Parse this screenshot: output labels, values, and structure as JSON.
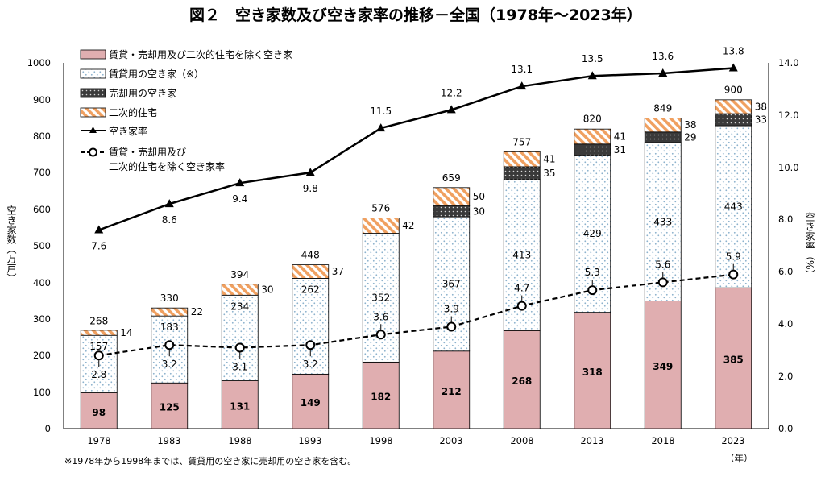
{
  "chart_data": {
    "type": "bar",
    "title": "図２　空き家数及び空き家率の推移－全国（1978年～2023年）",
    "categories": [
      "1978",
      "1983",
      "1988",
      "1993",
      "1998",
      "2003",
      "2008",
      "2013",
      "2018",
      "2023"
    ],
    "stacks": [
      {
        "name": "賃貸・売却用及び二次的住宅を除く空き家",
        "values": [
          98,
          125,
          131,
          149,
          182,
          212,
          268,
          318,
          349,
          385
        ]
      },
      {
        "name": "賃貸用の空き家（※）",
        "values": [
          157,
          183,
          234,
          262,
          352,
          367,
          413,
          429,
          433,
          443
        ]
      },
      {
        "name": "売却用の空き家",
        "values": [
          null,
          null,
          null,
          null,
          null,
          30,
          35,
          31,
          29,
          33
        ]
      },
      {
        "name": "二次的住宅",
        "values": [
          14,
          22,
          30,
          37,
          42,
          50,
          41,
          41,
          38,
          38
        ]
      }
    ],
    "stack_labels": [
      "98",
      "157",
      "",
      "14",
      "125",
      "183",
      "",
      "22",
      "131",
      "234",
      "",
      "30",
      "149",
      "262",
      "",
      "37",
      "182",
      "352",
      "",
      "42",
      "212",
      "367",
      "30",
      "50",
      "268",
      "413",
      "35",
      "41",
      "318",
      "429",
      "31",
      "41",
      "349",
      "433",
      "29",
      "38",
      "385",
      "443",
      "33",
      "38"
    ],
    "totals": [
      268,
      330,
      394,
      448,
      576,
      659,
      757,
      820,
      849,
      900
    ],
    "total_labels": [
      "268",
      "330",
      "394",
      "448",
      "576",
      "659",
      "757",
      "820",
      "849",
      "900"
    ],
    "lines": [
      {
        "name": "空き家率",
        "values": [
          7.6,
          8.6,
          9.4,
          9.8,
          11.5,
          12.2,
          13.1,
          13.5,
          13.6,
          13.8
        ],
        "labels": [
          "7.6",
          "8.6",
          "9.4",
          "9.8",
          "11.5",
          "12.2",
          "13.1",
          "13.5",
          "13.6",
          "13.8"
        ]
      },
      {
        "name_line1": "賃貸・売却用及び",
        "name_line2": "二次的住宅を除く空き家率",
        "values": [
          2.8,
          3.2,
          3.1,
          3.2,
          3.6,
          3.9,
          4.7,
          5.3,
          5.6,
          5.9
        ],
        "labels": [
          "2.8",
          "3.2",
          "3.1",
          "3.2",
          "3.6",
          "3.9",
          "4.7",
          "5.3",
          "5.6",
          "5.9"
        ]
      }
    ],
    "ylabel_left": "空き家数（万戸）",
    "ylabel_right": "空き家率（%）",
    "xunit": "（年）",
    "left_ticks": [
      "0",
      "100",
      "200",
      "300",
      "400",
      "500",
      "600",
      "700",
      "800",
      "900",
      "1000"
    ],
    "right_ticks": [
      "0.0",
      "2.0",
      "4.0",
      "6.0",
      "8.0",
      "10.0",
      "12.0",
      "14.0"
    ],
    "ylim_left": [
      0,
      1000
    ],
    "ylim_right": [
      0,
      14
    ],
    "legend_position": "top-left",
    "note": "※1978年から1998年までは、賃貸用の空き家に売却用の空き家を含む。",
    "colors": {
      "owner": "#e0aeb0",
      "rental_dots": "#8ab0cc",
      "sale": "#3a3a3a",
      "second": "#f0a060",
      "line": "#000000"
    }
  }
}
